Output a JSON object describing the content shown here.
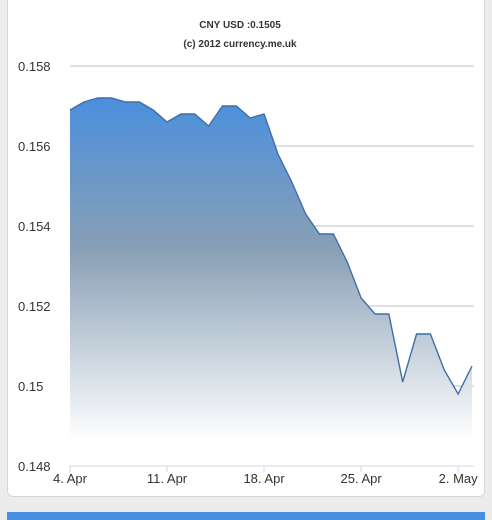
{
  "chart_data": {
    "type": "area",
    "title": "CNY USD :0.1505",
    "subtitle": "(c) 2012 currency.me.uk",
    "xlabel": "",
    "ylabel": "",
    "x": [
      "2012-04-04",
      "2012-04-05",
      "2012-04-06",
      "2012-04-07",
      "2012-04-08",
      "2012-04-09",
      "2012-04-10",
      "2012-04-11",
      "2012-04-12",
      "2012-04-13",
      "2012-04-14",
      "2012-04-15",
      "2012-04-16",
      "2012-04-17",
      "2012-04-18",
      "2012-04-19",
      "2012-04-20",
      "2012-04-21",
      "2012-04-22",
      "2012-04-23",
      "2012-04-24",
      "2012-04-25",
      "2012-04-26",
      "2012-04-27",
      "2012-04-28",
      "2012-04-29",
      "2012-04-30",
      "2012-05-01",
      "2012-05-02",
      "2012-05-03"
    ],
    "values": [
      0.1569,
      0.1571,
      0.1572,
      0.1572,
      0.1571,
      0.1571,
      0.1569,
      0.1566,
      0.1568,
      0.1568,
      0.1565,
      0.157,
      0.157,
      0.1567,
      0.1568,
      0.1558,
      0.1551,
      0.1543,
      0.1538,
      0.1538,
      0.1531,
      0.1522,
      0.1518,
      0.1518,
      0.1501,
      0.1513,
      0.1513,
      0.1504,
      0.1498,
      0.1505
    ],
    "ylim": [
      0.148,
      0.158
    ],
    "yticks": [
      {
        "value": 0.158,
        "label": "0.158"
      },
      {
        "value": 0.156,
        "label": "0.156"
      },
      {
        "value": 0.154,
        "label": "0.154"
      },
      {
        "value": 0.152,
        "label": "0.152"
      },
      {
        "value": 0.15,
        "label": "0.15"
      },
      {
        "value": 0.148,
        "label": "0.148"
      }
    ],
    "xticks": [
      {
        "date": "2012-04-04",
        "label": "4. Apr"
      },
      {
        "date": "2012-04-11",
        "label": "11. Apr"
      },
      {
        "date": "2012-04-18",
        "label": "18. Apr"
      },
      {
        "date": "2012-04-25",
        "label": "25. Apr"
      },
      {
        "date": "2012-05-02",
        "label": "2. May"
      }
    ],
    "grid": true,
    "colors": {
      "line": "#3f6fa8",
      "fill_top": "#4a8fdc",
      "fill_bottom": "#ffffff",
      "grid": "#c0c0c0",
      "axis": "#cfd8e8",
      "text": "#333333",
      "bar": "#4a90e2"
    }
  }
}
